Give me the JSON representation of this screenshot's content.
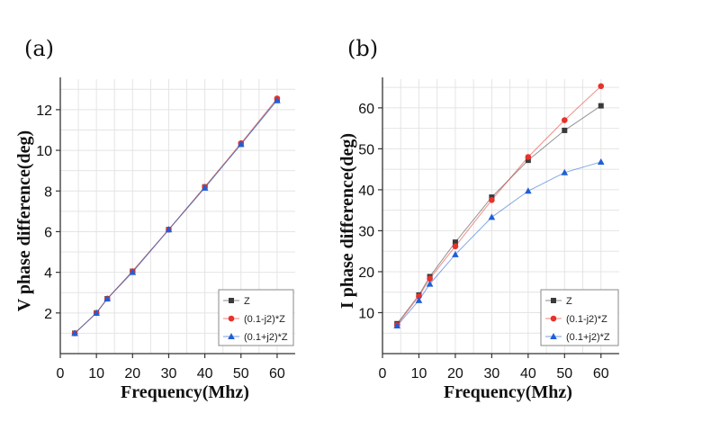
{
  "chart_data": [
    {
      "panel_label": "(a)",
      "type": "line",
      "xlabel": "Frequency(Mhz)",
      "ylabel": "V phase difference(deg)",
      "xlim": [
        0,
        65
      ],
      "ylim": [
        0,
        13.5
      ],
      "xticks": [
        0,
        10,
        20,
        30,
        40,
        50,
        60
      ],
      "yticks": [
        2,
        4,
        6,
        8,
        10,
        12
      ],
      "grid": true,
      "legend_position": "bottom-right",
      "x": [
        4,
        10,
        13,
        20,
        30,
        40,
        50,
        60
      ],
      "series": [
        {
          "name": "Z",
          "marker": "square",
          "color": "#3a3a3a",
          "values": [
            1.0,
            2.0,
            2.7,
            4.05,
            6.1,
            8.2,
            10.3,
            12.5
          ]
        },
        {
          "name": "(0.1-j2)*Z",
          "marker": "circle",
          "color": "#e8322c",
          "values": [
            1.0,
            2.0,
            2.7,
            4.05,
            6.1,
            8.2,
            10.35,
            12.55
          ]
        },
        {
          "name": "(0.1+j2)*Z",
          "marker": "triangle",
          "color": "#1f5fd6",
          "values": [
            1.0,
            2.0,
            2.7,
            4.0,
            6.1,
            8.15,
            10.3,
            12.45
          ]
        }
      ]
    },
    {
      "panel_label": "(b)",
      "type": "line",
      "xlabel": "Frequency(Mhz)",
      "ylabel": "I phase difference(deg)",
      "xlim": [
        0,
        65
      ],
      "ylim": [
        0,
        67
      ],
      "xticks": [
        0,
        10,
        20,
        30,
        40,
        50,
        60
      ],
      "yticks": [
        10,
        20,
        30,
        40,
        50,
        60
      ],
      "grid": true,
      "legend_position": "bottom-right",
      "x": [
        4,
        10,
        13,
        20,
        30,
        40,
        50,
        60
      ],
      "series": [
        {
          "name": "Z",
          "marker": "square",
          "color": "#3a3a3a",
          "values": [
            7.3,
            14.3,
            18.8,
            27.2,
            38.2,
            47.2,
            54.5,
            60.5
          ]
        },
        {
          "name": "(0.1-j2)*Z",
          "marker": "circle",
          "color": "#e8322c",
          "values": [
            7.0,
            14.0,
            18.3,
            26.2,
            37.5,
            48.0,
            57.0,
            65.3
          ]
        },
        {
          "name": "(0.1+j2)*Z",
          "marker": "triangle",
          "color": "#1f5fd6",
          "values": [
            6.8,
            13.0,
            17.0,
            24.2,
            33.3,
            39.7,
            44.2,
            46.8
          ]
        }
      ]
    }
  ]
}
